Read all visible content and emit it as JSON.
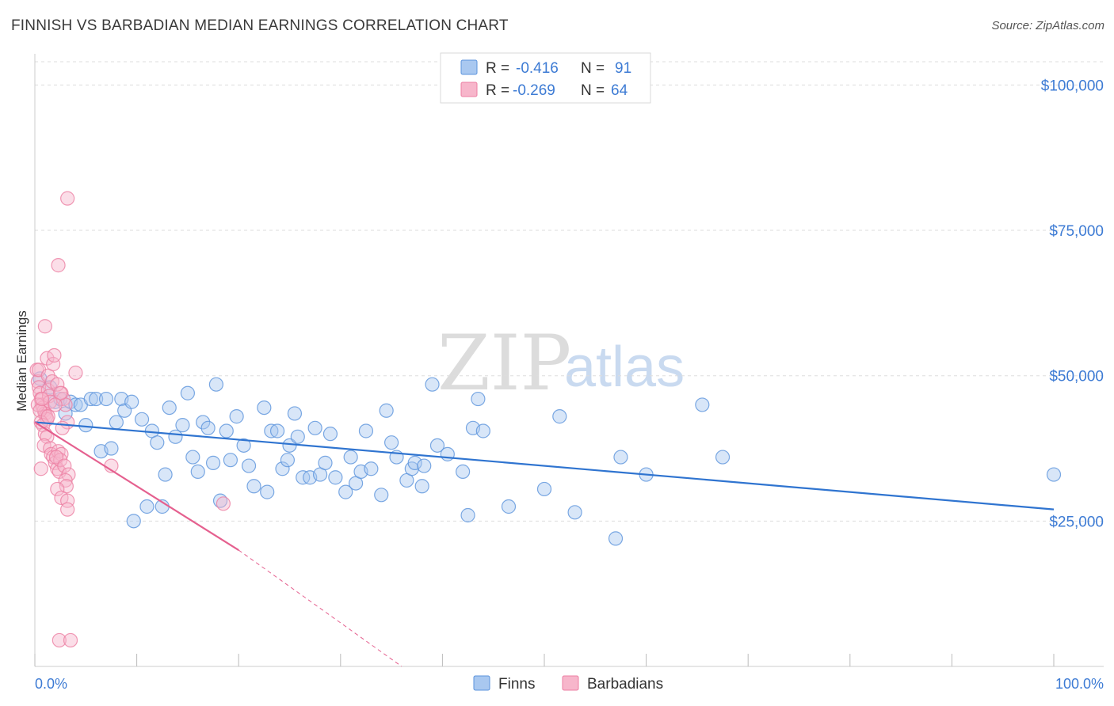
{
  "header": {
    "title": "FINNISH VS BARBADIAN MEDIAN EARNINGS CORRELATION CHART",
    "source": "Source: ZipAtlas.com"
  },
  "watermark": {
    "zip": "ZIP",
    "atlas": "atlas"
  },
  "legend_top": {
    "rows": [
      {
        "r_label": "R =",
        "r_value": "-0.416",
        "n_label": "N =",
        "n_value": "91",
        "color": "#a9c8f0"
      },
      {
        "r_label": "R =",
        "r_value": "-0.269",
        "n_label": "N =",
        "n_value": "64",
        "color": "#f7b6cb"
      }
    ]
  },
  "legend_bottom": {
    "items": [
      "Finns",
      "Barbadians"
    ]
  },
  "colors": {
    "finns_fill": "#a9c8f0",
    "finns_stroke": "#5b93dc",
    "finns_line": "#2f74d0",
    "barb_fill": "#f7b6cb",
    "barb_stroke": "#ec7fa3",
    "barb_line": "#e5608f",
    "tick_label": "#3d7bd4",
    "grid": "#dddddd"
  },
  "chart_data": {
    "type": "scatter",
    "title": "FINNISH VS BARBADIAN MEDIAN EARNINGS CORRELATION CHART",
    "xlabel": "",
    "ylabel": "Median Earnings",
    "xlim": [
      0,
      100
    ],
    "ylim": [
      0,
      104000
    ],
    "x_tick_labels": [
      "0.0%",
      "100.0%"
    ],
    "y_ticks": [
      25000,
      50000,
      75000,
      100000
    ],
    "y_tick_labels": [
      "$25,000",
      "$50,000",
      "$75,000",
      "$100,000"
    ],
    "grid": true,
    "legend_placement": "top-center",
    "series": [
      {
        "name": "Finns",
        "r": -0.416,
        "n": 91,
        "trend": {
          "x": [
            0,
            100
          ],
          "y": [
            42000,
            27000
          ]
        },
        "points": [
          [
            0.5,
            49500
          ],
          [
            1.5,
            48000
          ],
          [
            2.0,
            45500
          ],
          [
            2.5,
            46000
          ],
          [
            3.0,
            43500
          ],
          [
            3.5,
            45500
          ],
          [
            4.0,
            45000
          ],
          [
            4.5,
            45000
          ],
          [
            5.0,
            41500
          ],
          [
            5.5,
            46000
          ],
          [
            6.0,
            46000
          ],
          [
            6.5,
            37000
          ],
          [
            7.0,
            46000
          ],
          [
            7.5,
            37500
          ],
          [
            8.0,
            42000
          ],
          [
            8.5,
            46000
          ],
          [
            8.8,
            44000
          ],
          [
            9.5,
            45500
          ],
          [
            9.7,
            25000
          ],
          [
            10.5,
            42500
          ],
          [
            11.0,
            27500
          ],
          [
            11.5,
            40500
          ],
          [
            12.0,
            38500
          ],
          [
            12.5,
            27500
          ],
          [
            12.8,
            33000
          ],
          [
            13.2,
            44500
          ],
          [
            13.8,
            39500
          ],
          [
            14.5,
            41500
          ],
          [
            15.0,
            47000
          ],
          [
            15.5,
            36000
          ],
          [
            16.0,
            33500
          ],
          [
            16.5,
            42000
          ],
          [
            17.0,
            41000
          ],
          [
            17.5,
            35000
          ],
          [
            17.8,
            48500
          ],
          [
            18.2,
            28500
          ],
          [
            18.8,
            40500
          ],
          [
            19.2,
            35500
          ],
          [
            19.8,
            43000
          ],
          [
            20.5,
            38000
          ],
          [
            21.0,
            34500
          ],
          [
            21.5,
            31000
          ],
          [
            22.5,
            44500
          ],
          [
            22.8,
            30000
          ],
          [
            23.2,
            40500
          ],
          [
            23.8,
            40500
          ],
          [
            24.3,
            34000
          ],
          [
            24.8,
            35500
          ],
          [
            25.0,
            38000
          ],
          [
            25.5,
            43500
          ],
          [
            25.8,
            39500
          ],
          [
            26.3,
            32500
          ],
          [
            27.0,
            32500
          ],
          [
            27.5,
            41000
          ],
          [
            28.0,
            33000
          ],
          [
            28.5,
            35000
          ],
          [
            29.0,
            40000
          ],
          [
            29.5,
            32500
          ],
          [
            30.5,
            30000
          ],
          [
            31.0,
            36000
          ],
          [
            31.5,
            31500
          ],
          [
            32.0,
            33500
          ],
          [
            32.5,
            40500
          ],
          [
            33.0,
            34000
          ],
          [
            34.0,
            29500
          ],
          [
            34.5,
            44000
          ],
          [
            35.0,
            38500
          ],
          [
            35.5,
            36000
          ],
          [
            36.5,
            32000
          ],
          [
            37.0,
            34000
          ],
          [
            37.3,
            35000
          ],
          [
            38.0,
            31000
          ],
          [
            38.2,
            34500
          ],
          [
            39.0,
            48500
          ],
          [
            39.5,
            38000
          ],
          [
            40.5,
            36500
          ],
          [
            42.0,
            33500
          ],
          [
            42.5,
            26000
          ],
          [
            43.0,
            41000
          ],
          [
            44.0,
            40500
          ],
          [
            43.5,
            46000
          ],
          [
            46.5,
            27500
          ],
          [
            50.0,
            30500
          ],
          [
            51.5,
            43000
          ],
          [
            53.0,
            26500
          ],
          [
            57.0,
            22000
          ],
          [
            57.5,
            36000
          ],
          [
            60.0,
            33000
          ],
          [
            65.5,
            45000
          ],
          [
            67.5,
            36000
          ],
          [
            100.0,
            33000
          ]
        ]
      },
      {
        "name": "Barbadians",
        "r": -0.269,
        "n": 64,
        "trend": {
          "x": [
            0,
            20
          ],
          "y": [
            42000,
            20000
          ]
        },
        "trend_dashed": {
          "x": [
            20,
            36
          ],
          "y": [
            20000,
            0
          ]
        },
        "points": [
          [
            0.2,
            51000
          ],
          [
            0.3,
            49000
          ],
          [
            0.4,
            48000
          ],
          [
            0.5,
            47000
          ],
          [
            0.6,
            46000
          ],
          [
            0.7,
            45000
          ],
          [
            0.8,
            44500
          ],
          [
            0.9,
            44000
          ],
          [
            1.0,
            43500
          ],
          [
            1.1,
            43000
          ],
          [
            1.2,
            42500
          ],
          [
            1.3,
            47500
          ],
          [
            1.4,
            46500
          ],
          [
            1.5,
            45500
          ],
          [
            0.3,
            45000
          ],
          [
            0.5,
            44000
          ],
          [
            0.6,
            42000
          ],
          [
            0.8,
            41500
          ],
          [
            1.0,
            40000
          ],
          [
            1.2,
            39500
          ],
          [
            0.9,
            38000
          ],
          [
            1.5,
            37500
          ],
          [
            1.6,
            36500
          ],
          [
            1.8,
            36000
          ],
          [
            2.0,
            35000
          ],
          [
            2.2,
            34000
          ],
          [
            2.4,
            33500
          ],
          [
            2.6,
            47000
          ],
          [
            2.8,
            46000
          ],
          [
            3.0,
            45000
          ],
          [
            0.4,
            51000
          ],
          [
            1.3,
            50000
          ],
          [
            1.7,
            49000
          ],
          [
            2.2,
            48500
          ],
          [
            2.5,
            47000
          ],
          [
            2.0,
            45000
          ],
          [
            1.2,
            53000
          ],
          [
            1.8,
            52000
          ],
          [
            1.9,
            53500
          ],
          [
            1.0,
            58500
          ],
          [
            4.0,
            50500
          ],
          [
            3.2,
            42000
          ],
          [
            2.7,
            41000
          ],
          [
            2.3,
            37000
          ],
          [
            2.6,
            36500
          ],
          [
            2.5,
            35500
          ],
          [
            2.1,
            36000
          ],
          [
            2.9,
            34500
          ],
          [
            3.3,
            33000
          ],
          [
            3.0,
            32000
          ],
          [
            3.1,
            31000
          ],
          [
            2.2,
            30500
          ],
          [
            2.6,
            29000
          ],
          [
            3.2,
            28500
          ],
          [
            3.2,
            27000
          ],
          [
            0.6,
            34000
          ],
          [
            7.5,
            34500
          ],
          [
            18.5,
            28000
          ],
          [
            3.2,
            80500
          ],
          [
            2.3,
            69000
          ],
          [
            2.4,
            4500
          ],
          [
            3.5,
            4500
          ],
          [
            1.3,
            43000
          ],
          [
            0.7,
            46000
          ]
        ]
      }
    ]
  }
}
